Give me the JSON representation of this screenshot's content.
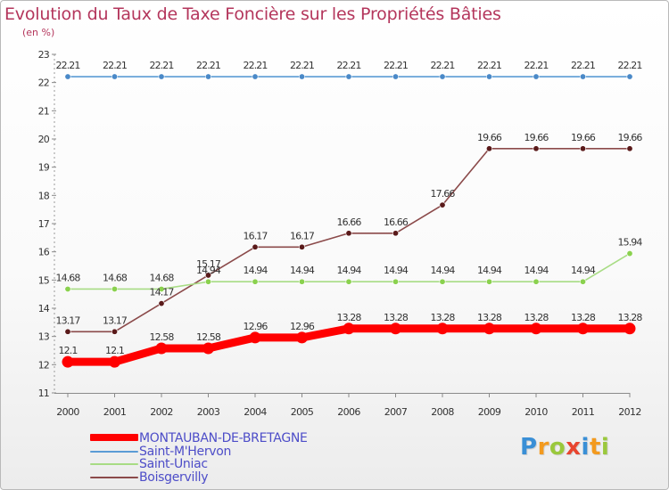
{
  "title": "Evolution du Taux de Taxe Foncière sur les Propriétés Bâties",
  "unit_label": "(en %)",
  "logo": {
    "text": "Proxiti",
    "letters": [
      {
        "ch": "P",
        "color": "#3a8fd6"
      },
      {
        "ch": "r",
        "color": "#f39a1e"
      },
      {
        "ch": "o",
        "color": "#9ac83c"
      },
      {
        "ch": "x",
        "color": "#e8452f"
      },
      {
        "ch": "i",
        "color": "#3a8fd6"
      },
      {
        "ch": "t",
        "color": "#f39a1e"
      },
      {
        "ch": "i",
        "color": "#9ac83c"
      }
    ]
  },
  "chart_data": {
    "type": "line",
    "title": "Evolution du Taux de Taxe Foncière sur les Propriétés Bâties",
    "ylabel": "(en %)",
    "x": [
      "2000",
      "2001",
      "2002",
      "2003",
      "2004",
      "2005",
      "2006",
      "2007",
      "2008",
      "2009",
      "2010",
      "2011",
      "2012"
    ],
    "ylim": [
      11,
      23
    ],
    "yticks": [
      11,
      12,
      13,
      14,
      15,
      16,
      17,
      18,
      19,
      20,
      21,
      22,
      23
    ],
    "grid": false,
    "legend_position": "bottom-left",
    "series": [
      {
        "name": "Saint-M'Hervon",
        "color": "#5b9bd5",
        "point_color": "#4a89c8",
        "values": [
          22.21,
          22.21,
          22.21,
          22.21,
          22.21,
          22.21,
          22.21,
          22.21,
          22.21,
          22.21,
          22.21,
          22.21,
          22.21
        ],
        "labels": [
          "22.21",
          "22.21",
          "22.21",
          "22.21",
          "22.21",
          "22.21",
          "22.21",
          "22.21",
          "22.21",
          "22.21",
          "22.21",
          "22.21",
          "22.21"
        ]
      },
      {
        "name": "Boisgervilly",
        "color": "#8b4a4a",
        "point_color": "#5a1a1a",
        "values": [
          13.17,
          13.17,
          14.17,
          15.17,
          16.17,
          16.17,
          16.66,
          16.66,
          17.66,
          19.66,
          19.66,
          19.66,
          19.66
        ],
        "labels": [
          "13.17",
          "13.17",
          "14.17",
          "15.17",
          "16.17",
          "16.17",
          "16.66",
          "16.66",
          "17.66",
          "19.66",
          "19.66",
          "19.66",
          "19.66"
        ]
      },
      {
        "name": "Saint-Uniac",
        "color": "#a8dc84",
        "point_color": "#8ad14e",
        "values": [
          14.68,
          14.68,
          14.68,
          14.94,
          14.94,
          14.94,
          14.94,
          14.94,
          14.94,
          14.94,
          14.94,
          14.94,
          15.94
        ],
        "labels": [
          "14.68",
          "14.68",
          "14.68",
          "14.94",
          "14.94",
          "14.94",
          "14.94",
          "14.94",
          "14.94",
          "14.94",
          "14.94",
          "14.94",
          "15.94"
        ]
      },
      {
        "name": "MONTAUBAN-DE-BRETAGNE",
        "color": "#ff0000",
        "point_color": "#ff0000",
        "values": [
          12.1,
          12.1,
          12.58,
          12.58,
          12.96,
          12.96,
          13.28,
          13.28,
          13.28,
          13.28,
          13.28,
          13.28,
          13.28
        ],
        "labels": [
          "12.1",
          "12.1",
          "12.58",
          "12.58",
          "12.96",
          "12.96",
          "13.28",
          "13.28",
          "13.28",
          "13.28",
          "13.28",
          "13.28",
          "13.28"
        ]
      }
    ],
    "legend": [
      {
        "name": "MONTAUBAN-DE-BRETAGNE",
        "color": "#ff0000"
      },
      {
        "name": "Saint-M'Hervon",
        "color": "#5b9bd5"
      },
      {
        "name": "Saint-Uniac",
        "color": "#a8dc84"
      },
      {
        "name": "Boisgervilly",
        "color": "#8b4a4a"
      }
    ]
  }
}
